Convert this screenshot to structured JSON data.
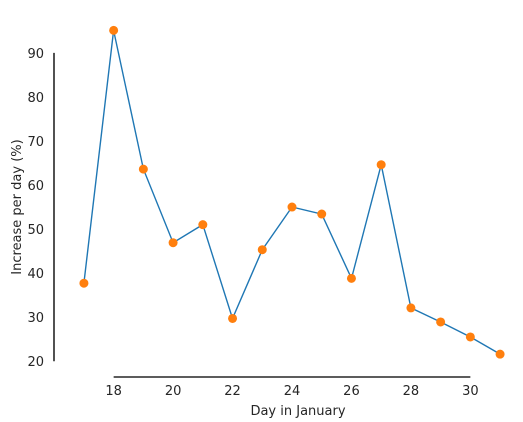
{
  "chart_data": {
    "type": "line",
    "xlabel": "Day in January",
    "ylabel": "Increase per day (%)",
    "xlim": [
      16.7,
      31.3
    ],
    "ylim": [
      18,
      97
    ],
    "x_ticks": [
      18,
      20,
      22,
      24,
      26,
      28,
      30
    ],
    "y_ticks": [
      20,
      30,
      40,
      50,
      60,
      70,
      80,
      90
    ],
    "x_spine_range": [
      18,
      30
    ],
    "y_spine_range": [
      20,
      90
    ],
    "grid": false,
    "series": [
      {
        "x": [
          17,
          18,
          19,
          20,
          21,
          22,
          23,
          24,
          25,
          26,
          27,
          28,
          29,
          30,
          31
        ],
        "values": [
          37.7,
          95.1,
          63.6,
          46.9,
          51.0,
          29.7,
          45.3,
          55.0,
          53.4,
          38.8,
          64.6,
          32.1,
          28.9,
          25.5,
          21.6
        ]
      }
    ],
    "colors": {
      "line": "#1f77b4",
      "marker": "#ff7f0e",
      "axis": "#262626"
    }
  }
}
